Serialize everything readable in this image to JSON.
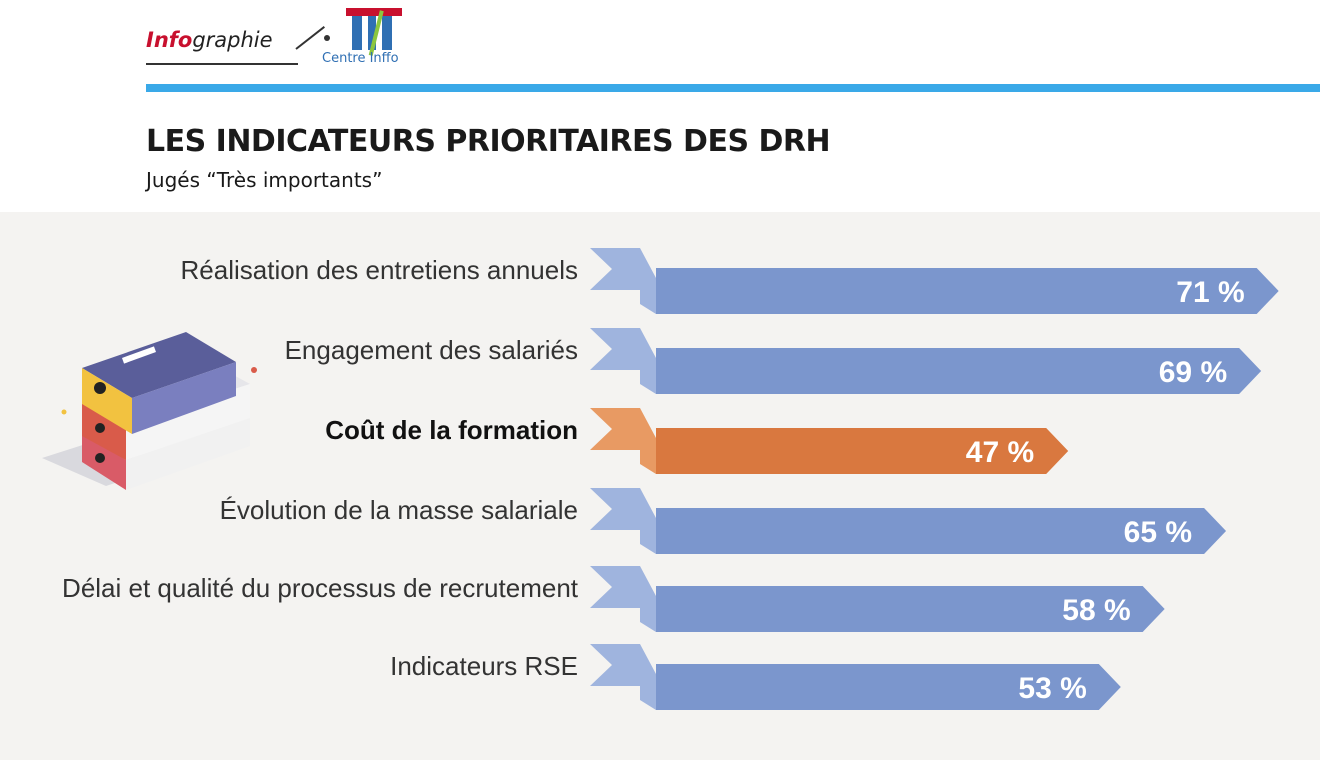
{
  "header": {
    "brand_part1": "Info",
    "brand_part2": "graphie",
    "logo_text": "Centre Inffo",
    "title": "LES INDICATEURS PRIORITAIRES DES DRH",
    "subtitle": "Jugés “Très importants”"
  },
  "colors": {
    "bar_default": "#7b96cd",
    "bar_highlight": "#d9783f",
    "bar_tab_default": "#9fb4de",
    "bar_tab_highlight": "#e89a63",
    "rule": "#3aa9e8"
  },
  "illustration": {
    "icon": "stacked-binders-icon"
  },
  "chart_data": {
    "type": "bar",
    "orientation": "horizontal",
    "unit": "%",
    "categories": [
      "Réalisation des entretiens annuels",
      "Engagement des salariés",
      "Coût de la formation",
      "Évolution de la masse salariale",
      "Délai et qualité du processus de recrutement",
      "Indicateurs RSE"
    ],
    "values": [
      71,
      69,
      47,
      65,
      58,
      53
    ],
    "value_labels": [
      "71 %",
      "69 %",
      "47 %",
      "65 %",
      "58 %",
      "53 %"
    ],
    "highlight_index": 2,
    "title": "LES INDICATEURS PRIORITAIRES DES DRH",
    "subtitle": "Jugés “Très importants”",
    "xlim": [
      0,
      100
    ],
    "grid": false,
    "legend": "none"
  }
}
